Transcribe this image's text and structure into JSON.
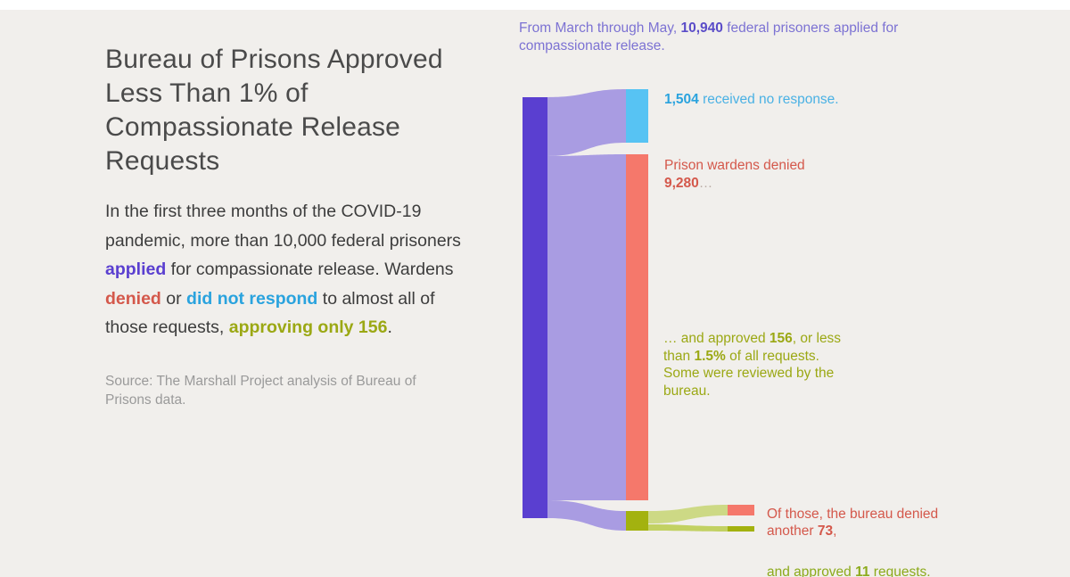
{
  "colors": {
    "background": "#f1efec",
    "top_strip": "#ffffff",
    "title_text": "#4a4a4a",
    "body_text": "#3d3d3d",
    "source_text": "#9a9a9a",
    "purple": "#7c72d3",
    "purple_bold": "#5a4cc8",
    "purple_node": "#5a3fd0",
    "purple_ribbon": "#a99ce2",
    "blue": "#4ab1e4",
    "blue_bold": "#2aa3de",
    "blue_node": "#57c3f3",
    "red": "#d4584b",
    "salmon_node": "#f5786b",
    "olive": "#9ba814",
    "green_text": "#8caa1c",
    "olive_node": "#a3b20f",
    "green_ribbon": "#cdd985",
    "green_ribbon_dark": "#c2d162",
    "ellipsis_gray": "#b9aba5"
  },
  "left_panel": {
    "title": "Bureau of Prisons Approved\nLess Than 1% of\nCompassionate Release\nRequests",
    "paragraph": [
      {
        "t": "In the first three months of the COVID-19\npandemic, more than 10,000 federal prisoners\n"
      },
      {
        "t": "applied",
        "b": true,
        "c": "purple_node"
      },
      {
        "t": " for compassionate release. Wardens\n"
      },
      {
        "t": "denied",
        "b": true,
        "c": "red"
      },
      {
        "t": " or "
      },
      {
        "t": "did not respond",
        "b": true,
        "c": "blue_bold"
      },
      {
        "t": " to almost all of\nthose requests, "
      },
      {
        "t": "approving only 156",
        "b": true,
        "c": "olive"
      },
      {
        "t": "."
      }
    ],
    "source_note": "Source: The Marshall Project analysis of Bureau of\nPrisons data."
  },
  "annotations": {
    "total": [
      {
        "t": "From March through May, ",
        "c": "purple"
      },
      {
        "t": "10,940",
        "b": true,
        "c": "purple_bold"
      },
      {
        "t": " federal prisoners applied for\ncompassionate release.",
        "c": "purple"
      }
    ],
    "no_response": [
      {
        "t": "1,504",
        "b": true,
        "c": "blue_bold"
      },
      {
        "t": " received no response.",
        "c": "blue"
      }
    ],
    "warden_denied": [
      {
        "t": "Prison wardens denied\n",
        "c": "red"
      },
      {
        "t": "9,280",
        "b": true,
        "c": "red"
      },
      {
        "t": "…",
        "c": "ellipsis_gray"
      }
    ],
    "warden_approved": [
      {
        "t": "… and approved ",
        "c": "olive"
      },
      {
        "t": "156",
        "b": true,
        "c": "olive"
      },
      {
        "t": ", or less\nthan ",
        "c": "olive"
      },
      {
        "t": "1.5%",
        "b": true,
        "c": "olive"
      },
      {
        "t": " of all requests.\nSome were reviewed by the\nbureau.",
        "c": "olive"
      }
    ],
    "bureau_denied": [
      {
        "t": "Of those, the bureau denied\nanother ",
        "c": "red"
      },
      {
        "t": "73",
        "b": true,
        "c": "red"
      },
      {
        "t": ",",
        "c": "red"
      }
    ],
    "bureau_approved": [
      {
        "t": "and approved ",
        "c": "green_text"
      },
      {
        "t": "11",
        "b": true,
        "c": "green_text"
      },
      {
        "t": " requests.",
        "c": "green_text"
      }
    ]
  },
  "chart_data": {
    "type": "sankey",
    "title": "Bureau of Prisons Approved Less Than 1% of Compassionate Release Requests",
    "subtitle": "In the first three months of the COVID-19 pandemic, more than 10,000 federal prisoners applied for compassionate release. Wardens denied or did not respond to almost all of those requests, approving only 156.",
    "source": "Source: The Marshall Project analysis of Bureau of Prisons data.",
    "period": "From March through May",
    "nodes": [
      {
        "id": "applied",
        "label": "Federal prisoners applied for compassionate release",
        "value": 10940,
        "color_key": "purple_node"
      },
      {
        "id": "no_response",
        "label": "Received no response",
        "value": 1504,
        "color_key": "blue_node"
      },
      {
        "id": "warden_denied",
        "label": "Prison wardens denied",
        "value": 9280,
        "color_key": "salmon_node"
      },
      {
        "id": "warden_approved",
        "label": "Wardens approved (less than 1.5% of all requests; some were reviewed by the bureau)",
        "value": 156,
        "color_key": "olive_node"
      },
      {
        "id": "bureau_denied",
        "label": "Bureau denied another",
        "value": 73,
        "color_key": "salmon_node"
      },
      {
        "id": "bureau_approved",
        "label": "Bureau approved requests",
        "value": 11,
        "color_key": "olive_node"
      }
    ],
    "links": [
      {
        "source": "applied",
        "target": "no_response",
        "value": 1504
      },
      {
        "source": "applied",
        "target": "warden_denied",
        "value": 9280
      },
      {
        "source": "applied",
        "target": "warden_approved",
        "value": 156
      },
      {
        "source": "warden_approved",
        "target": "bureau_denied",
        "value": 73
      },
      {
        "source": "warden_approved",
        "target": "bureau_approved",
        "value": 11
      }
    ],
    "facts": {
      "total_applied": "10,940",
      "no_response": "1,504",
      "warden_denied": "9,280",
      "warden_approved": "156",
      "approved_share": "1.5%",
      "bureau_denied": "73",
      "bureau_approved": "11"
    },
    "legend_position": "none",
    "grid": false
  }
}
